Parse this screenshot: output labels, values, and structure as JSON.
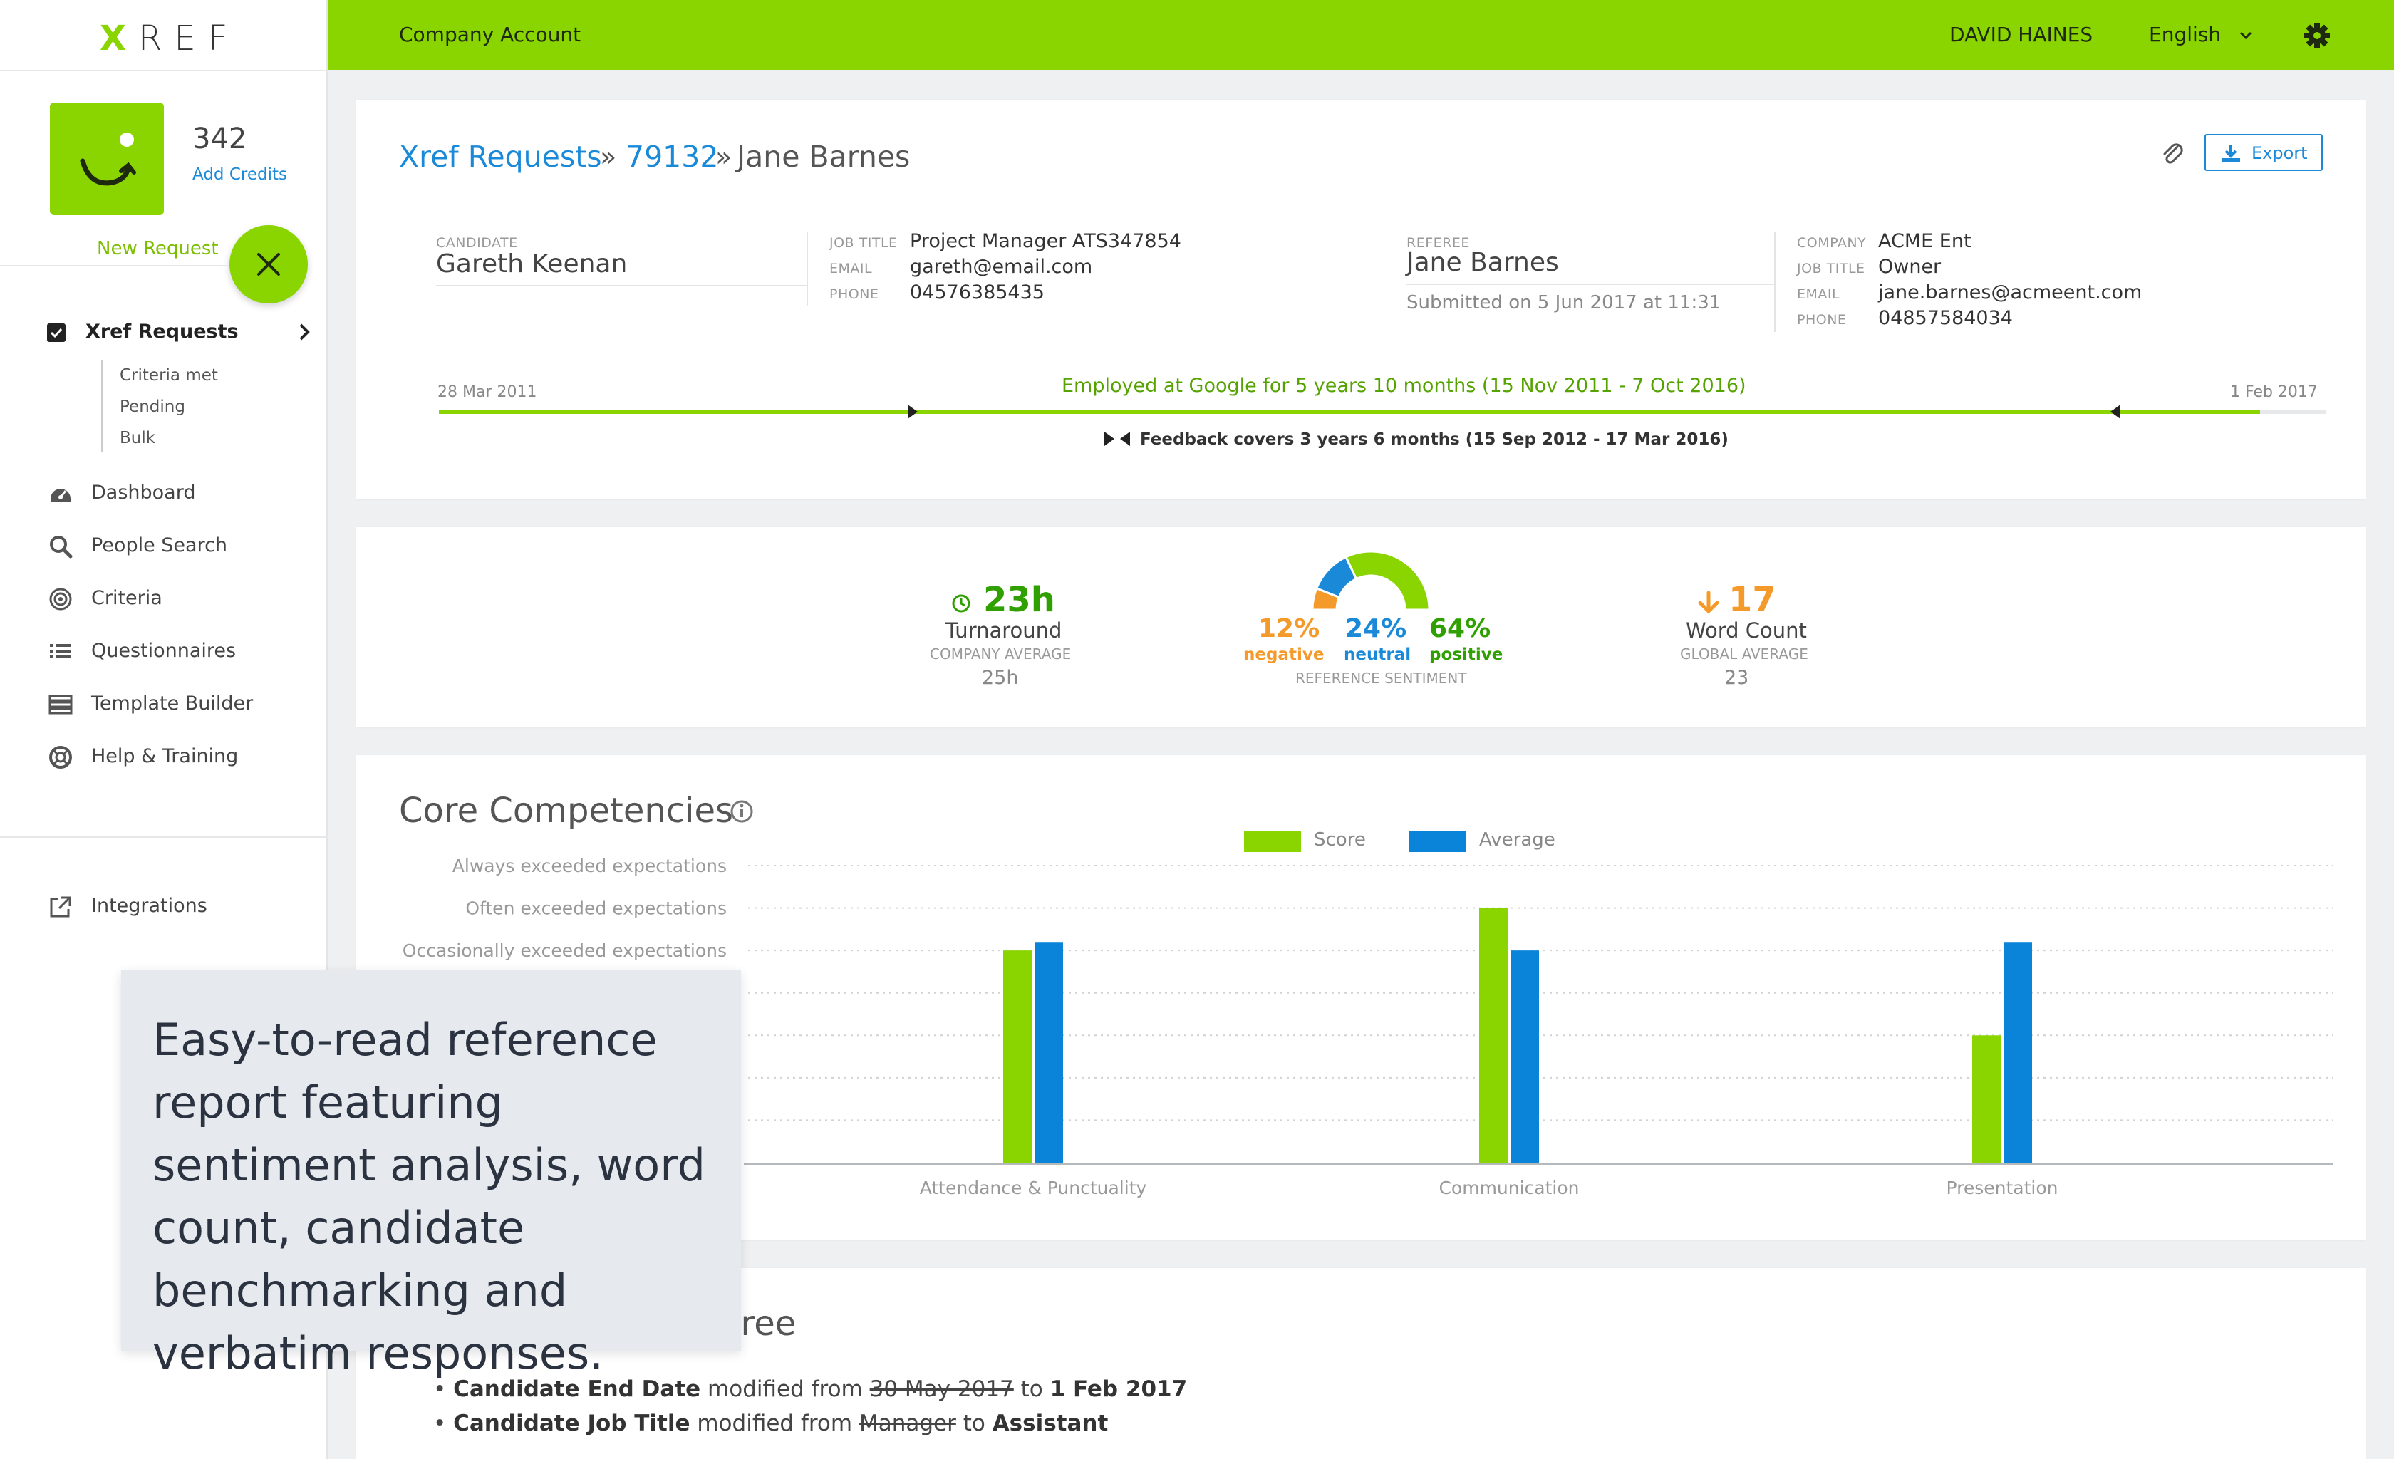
{
  "sidebar": {
    "logo": "REF",
    "logo_x": "X",
    "credits_count": "342",
    "add_credits": "Add Credits",
    "new_request": "New Request",
    "nav_main": "Xref Requests",
    "sub_items": [
      "Criteria met",
      "Pending",
      "Bulk"
    ],
    "items": [
      {
        "label": "Dashboard",
        "icon": "dashboard-icon"
      },
      {
        "label": "People Search",
        "icon": "search-icon"
      },
      {
        "label": "Criteria",
        "icon": "target-icon"
      },
      {
        "label": "Questionnaires",
        "icon": "list-icon"
      },
      {
        "label": "Template Builder",
        "icon": "template-icon"
      },
      {
        "label": "Help & Training",
        "icon": "lifebuoy-icon"
      }
    ],
    "integrations": "Integrations"
  },
  "topbar": {
    "company_account": "Company Account",
    "user_name": "DAVID HAINES",
    "language": "English"
  },
  "breadcrumb": {
    "link": "Xref Requests",
    "sep": "»",
    "request_id": "79132",
    "name": "Jane Barnes"
  },
  "toolbar": {
    "export_label": "Export"
  },
  "candidate": {
    "label": "CANDIDATE",
    "name": "Gareth Keenan",
    "job_title_label": "JOB TITLE",
    "job_title": "Project Manager ATS347854",
    "email_label": "EMAIL",
    "email": "gareth@email.com",
    "phone_label": "PHONE",
    "phone": "04576385435"
  },
  "referee": {
    "label": "REFEREE",
    "name": "Jane Barnes",
    "submitted": "Submitted on 5 Jun 2017 at 11:31",
    "company_label": "COMPANY",
    "company": "ACME Ent",
    "job_title_label": "JOB TITLE",
    "job_title": "Owner",
    "email_label": "EMAIL",
    "email": "jane.barnes@acmeent.com",
    "phone_label": "PHONE",
    "phone": "04857584034"
  },
  "timeline": {
    "start": "28 Mar 2011",
    "end": "1 Feb 2017",
    "employed": "Employed at Google for 5 years 10 months (15 Nov 2011 - 7 Oct 2016)",
    "feedback": "Feedback covers 3 years 6 months (15 Sep 2012 - 17 Mar 2016)"
  },
  "metrics": {
    "turnaround": "23h",
    "turnaround_label": "Turnaround",
    "company_avg_label": "COMPANY AVERAGE",
    "company_avg": "25h",
    "sentiment_label": "REFERENCE SENTIMENT",
    "negative_pct": "12%",
    "negative": "negative",
    "neutral_pct": "24%",
    "neutral": "neutral",
    "positive_pct": "64%",
    "positive": "positive",
    "word_count": "17",
    "word_count_label": "Word Count",
    "global_avg_label": "GLOBAL AVERAGE",
    "global_avg": "23"
  },
  "core": {
    "title": "Core Competencies",
    "legend_score": "Score",
    "legend_average": "Average"
  },
  "chart_data": {
    "type": "bar",
    "title": "Core Competencies",
    "y_levels": [
      "Always exceeded expectations",
      "Often exceeded expectations",
      "Occasionally exceeded expectations",
      "",
      "",
      "",
      ""
    ],
    "categories": [
      "Attendance & Punctuality",
      "Communication",
      "Presentation"
    ],
    "series": [
      {
        "name": "Score",
        "values": [
          5.0,
          6.0,
          3.0
        ],
        "color": "#8ad400"
      },
      {
        "name": "Average",
        "values": [
          5.2,
          5.0,
          5.2
        ],
        "color": "#0a84d8"
      }
    ],
    "ylim": [
      0,
      7
    ],
    "grid": true,
    "legend": "top-center"
  },
  "changes": {
    "title_tail": "eree",
    "lines": [
      {
        "field": "Candidate End Date",
        "from_word": "modified from",
        "old": "30 May 2017",
        "to_word": "to",
        "new": "1 Feb 2017"
      },
      {
        "field": "Candidate Job Title",
        "from_word": "modified from",
        "old": "Manager",
        "to_word": "to",
        "new": "Assistant"
      }
    ]
  },
  "caption": {
    "text": "Easy-to-read reference report featuring sentiment analysis, word count, candidate benchmarking and verbatim responses."
  }
}
